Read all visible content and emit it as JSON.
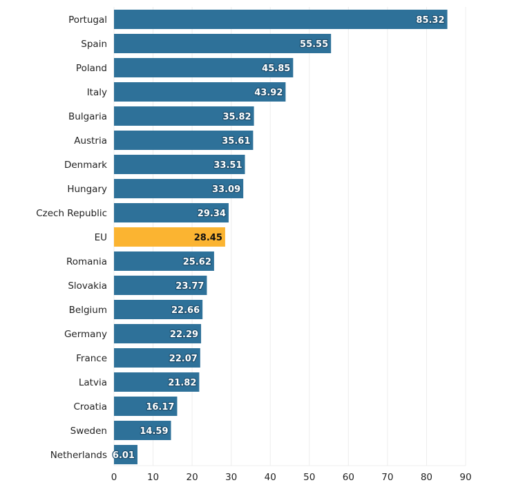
{
  "chart_data": {
    "type": "bar",
    "orientation": "horizontal",
    "title": "",
    "xlabel": "",
    "ylabel": "",
    "xlim": [
      0,
      90
    ],
    "x_ticks": [
      0,
      10,
      20,
      30,
      40,
      50,
      60,
      70,
      80,
      90
    ],
    "grid": true,
    "categories": [
      "Portugal",
      "Spain",
      "Poland",
      "Italy",
      "Bulgaria",
      "Austria",
      "Denmark",
      "Hungary",
      "Czech Republic",
      "EU",
      "Romania",
      "Slovakia",
      "Belgium",
      "Germany",
      "France",
      "Latvia",
      "Croatia",
      "Sweden",
      "Netherlands"
    ],
    "values": [
      85.32,
      55.55,
      45.85,
      43.92,
      35.82,
      35.61,
      33.51,
      33.09,
      29.34,
      28.45,
      25.62,
      23.77,
      22.66,
      22.29,
      22.07,
      21.82,
      16.17,
      14.59,
      6.01
    ],
    "value_labels": [
      "85.32",
      "55.55",
      "45.85",
      "43.92",
      "35.82",
      "35.61",
      "33.51",
      "33.09",
      "29.34",
      "28.45",
      "25.62",
      "23.77",
      "22.66",
      "22.29",
      "22.07",
      "21.82",
      "16.17",
      "14.59",
      "6.01"
    ],
    "highlight": "EU",
    "colors": {
      "bar": "#2e7199",
      "highlight": "#fbb431"
    }
  }
}
